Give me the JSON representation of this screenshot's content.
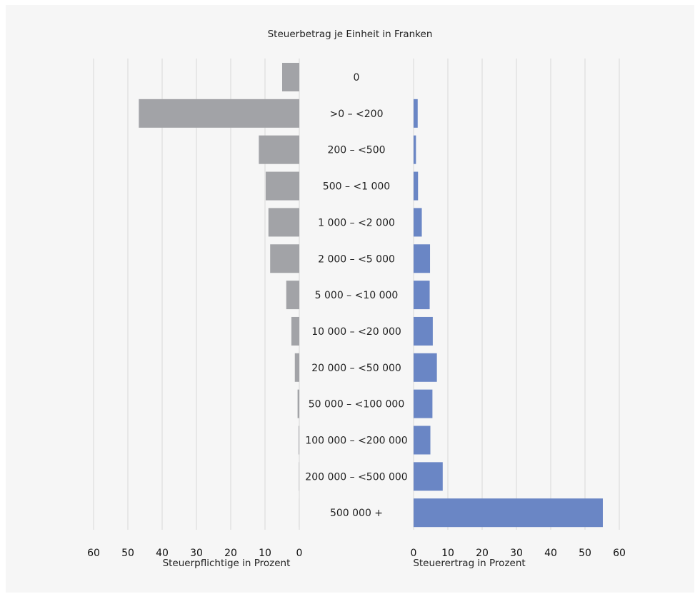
{
  "chart_data": {
    "type": "bar",
    "title": "Steuerbetrag je Einheit in Franken",
    "categories": [
      "0",
      ">0 – <200",
      "200 – <500",
      "500 – <1 000",
      "1 000 – <2 000",
      "2 000 – <5 000",
      "5 000 – <10 000",
      "10 000 – <20 000",
      "20 000 – <50 000",
      "50 000 – <100 000",
      "100 000 – <200 000",
      "200 000 – <500 000",
      "500 000 +"
    ],
    "series": [
      {
        "name": "Steuerpflichtige in Prozent",
        "values": [
          5.0,
          46.8,
          11.8,
          9.8,
          9.0,
          8.5,
          3.8,
          2.3,
          1.3,
          0.5,
          0.2,
          0.1,
          0.02
        ],
        "color": "#a2a3a7",
        "xlabel": "Steuerpflichtige in Prozent",
        "xlim": [
          0,
          60
        ],
        "direction": "left"
      },
      {
        "name": "Steuerertrag in Prozent",
        "values": [
          0.0,
          1.2,
          0.7,
          1.3,
          2.4,
          4.8,
          4.7,
          5.6,
          6.8,
          5.5,
          4.9,
          8.5,
          55.2
        ],
        "color": "#6a86c5",
        "xlabel": "Steuerertrag in Prozent",
        "xlim": [
          0,
          60
        ],
        "direction": "right"
      }
    ],
    "ticks": [
      0,
      10,
      20,
      30,
      40,
      50,
      60
    ],
    "grid": true
  }
}
